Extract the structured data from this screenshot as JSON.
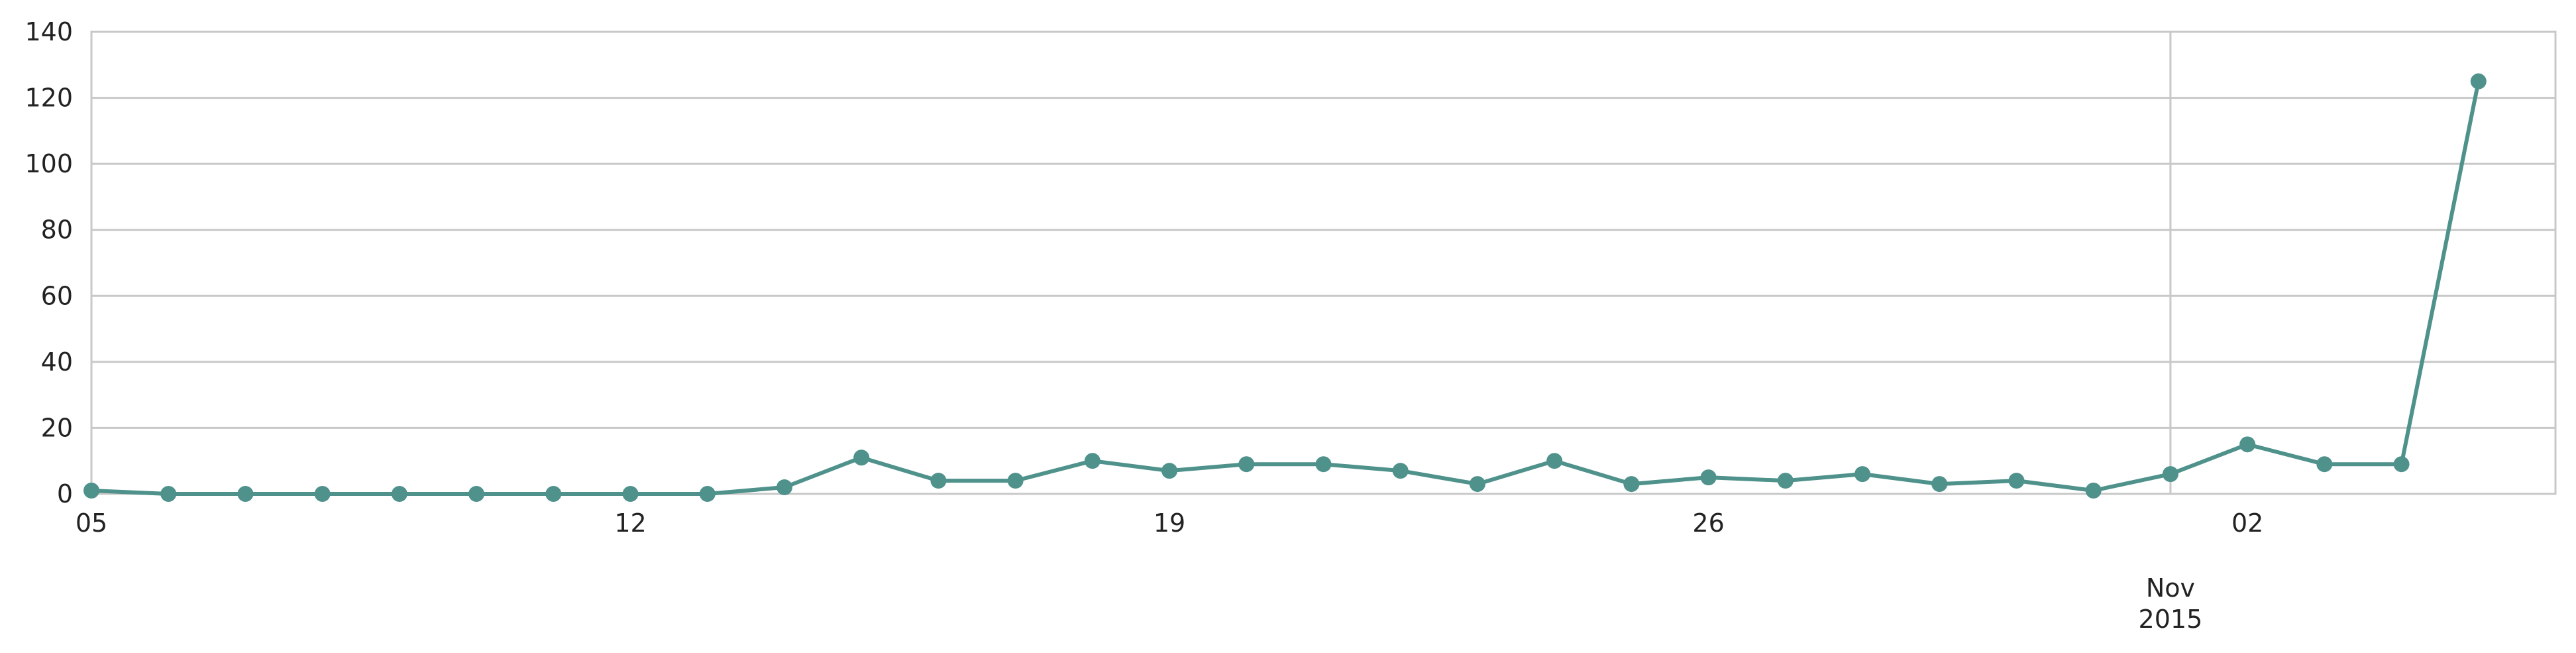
{
  "chart_data": {
    "type": "line",
    "title": "",
    "xlabel": "",
    "ylabel": "",
    "x_range": [
      "2015-10-05",
      "2015-11-06"
    ],
    "ylim": [
      0,
      140
    ],
    "grid": true,
    "legend": "none",
    "x_ticks": [
      {
        "date": "2015-10-05",
        "label": "05"
      },
      {
        "date": "2015-10-12",
        "label": "12"
      },
      {
        "date": "2015-10-19",
        "label": "19"
      },
      {
        "date": "2015-10-26",
        "label": "26"
      },
      {
        "date": "2015-11-02",
        "label": "02"
      }
    ],
    "x_month_label": {
      "date": "2015-11-01",
      "month": "Nov",
      "year": "2015"
    },
    "y_ticks": [
      0,
      20,
      40,
      60,
      80,
      100,
      120,
      140
    ],
    "series": [
      {
        "color": "#4f918b",
        "x": [
          "2015-10-05",
          "2015-10-06",
          "2015-10-07",
          "2015-10-08",
          "2015-10-09",
          "2015-10-10",
          "2015-10-11",
          "2015-10-12",
          "2015-10-13",
          "2015-10-14",
          "2015-10-15",
          "2015-10-16",
          "2015-10-17",
          "2015-10-18",
          "2015-10-19",
          "2015-10-20",
          "2015-10-21",
          "2015-10-22",
          "2015-10-23",
          "2015-10-24",
          "2015-10-25",
          "2015-10-26",
          "2015-10-27",
          "2015-10-28",
          "2015-10-29",
          "2015-10-30",
          "2015-10-31",
          "2015-11-01",
          "2015-11-02",
          "2015-11-03",
          "2015-11-04",
          "2015-11-05"
        ],
        "values": [
          1,
          0,
          0,
          0,
          0,
          0,
          0,
          0,
          0,
          2,
          11,
          4,
          4,
          10,
          7,
          9,
          9,
          7,
          3,
          10,
          3,
          5,
          4,
          6,
          3,
          4,
          1,
          6,
          15,
          9,
          9,
          125
        ]
      }
    ]
  }
}
